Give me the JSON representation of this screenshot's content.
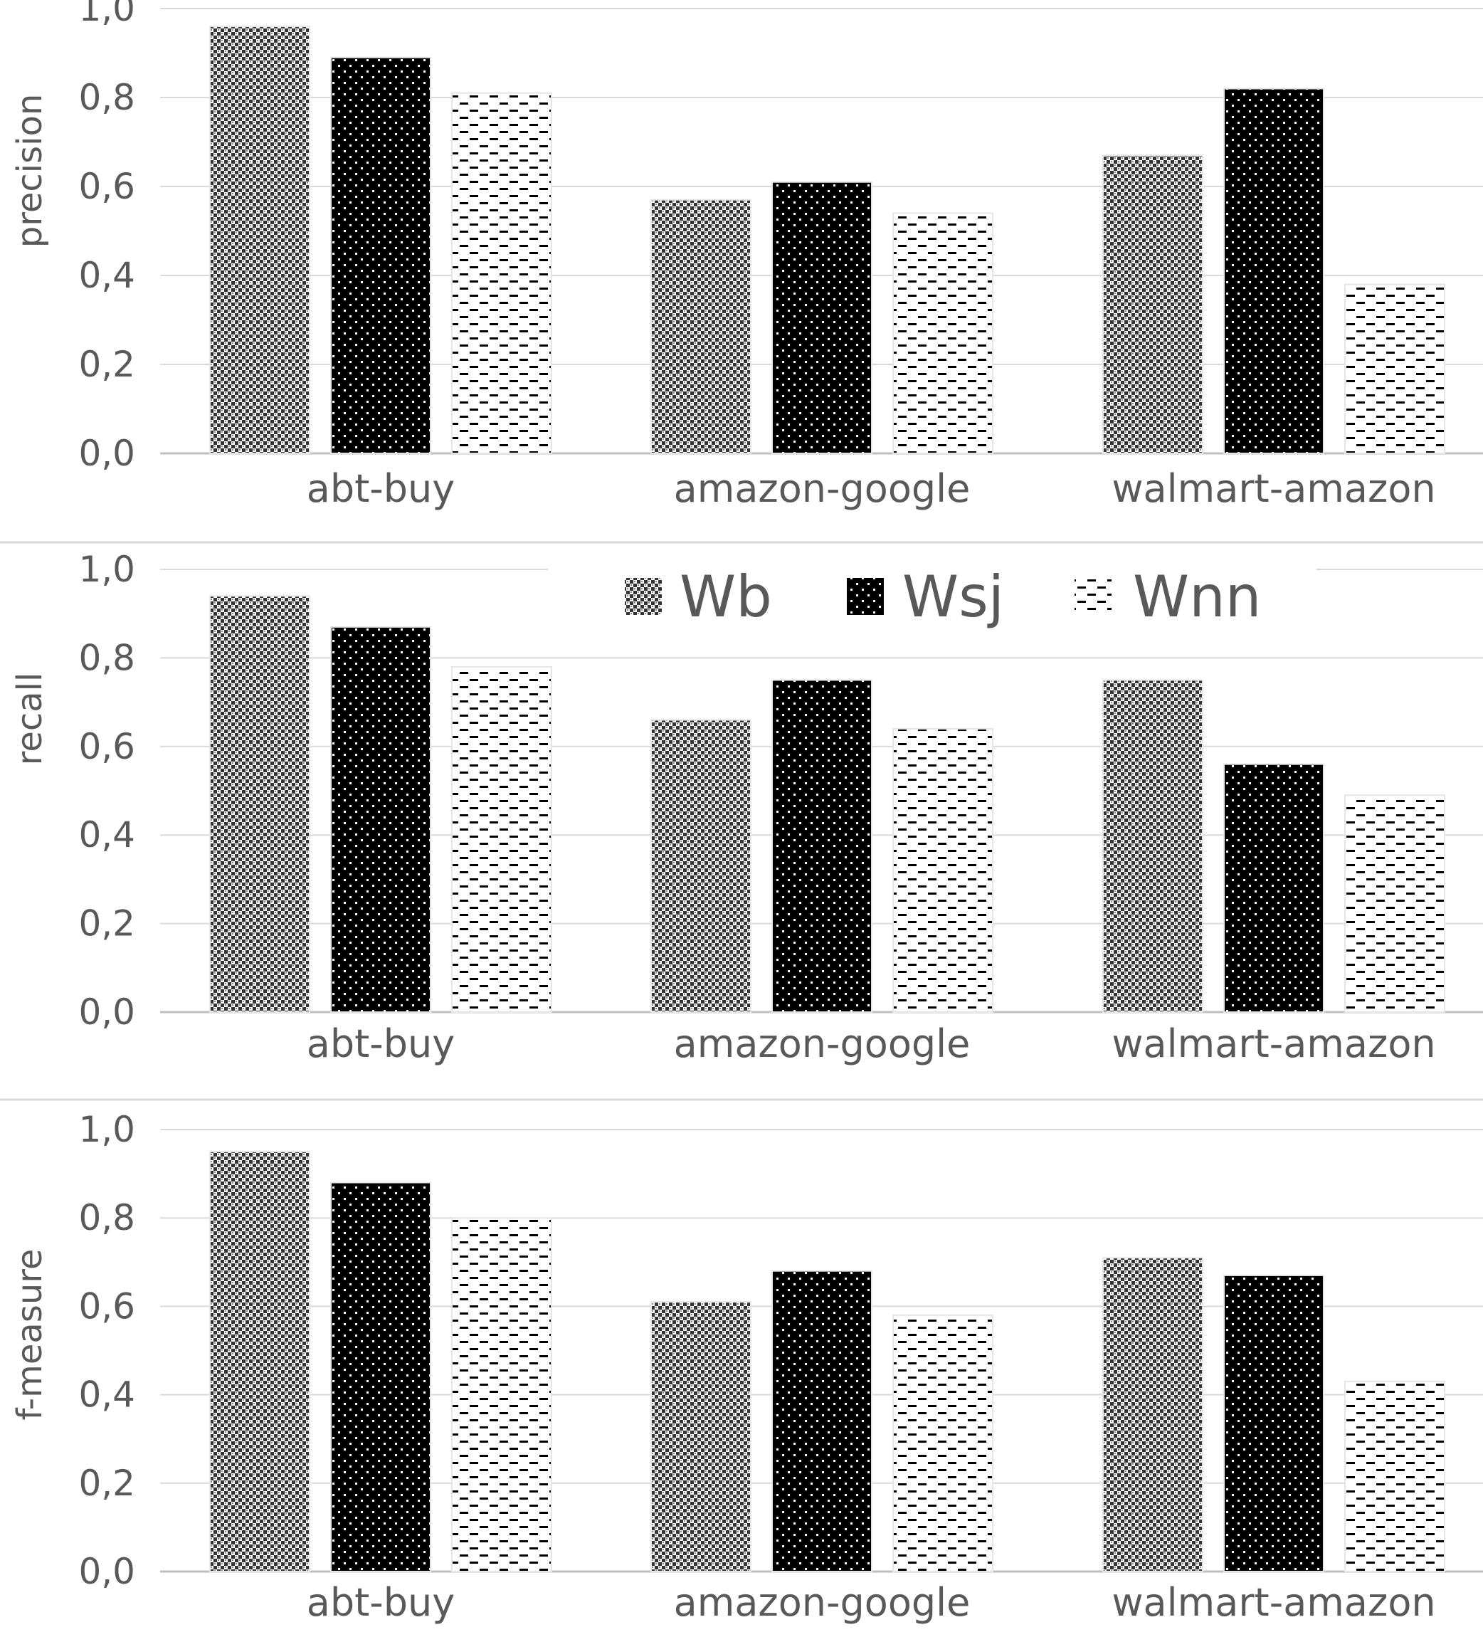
{
  "chart_data": [
    {
      "type": "bar",
      "ylabel": "precision",
      "categories": [
        "abt-buy",
        "amazon-google",
        "walmart-amazon"
      ],
      "series": [
        {
          "name": "Wb",
          "values": [
            0.96,
            0.57,
            0.67
          ]
        },
        {
          "name": "Wsj",
          "values": [
            0.89,
            0.61,
            0.82
          ]
        },
        {
          "name": "Wnn",
          "values": [
            0.81,
            0.54,
            0.38
          ]
        }
      ],
      "yticks": [
        "0,0",
        "0,2",
        "0,4",
        "0,6",
        "0,8",
        "1,0"
      ],
      "ylim": [
        0,
        1
      ],
      "grid": true
    },
    {
      "type": "bar",
      "ylabel": "recall",
      "categories": [
        "abt-buy",
        "amazon-google",
        "walmart-amazon"
      ],
      "series": [
        {
          "name": "Wb",
          "values": [
            0.94,
            0.66,
            0.75
          ]
        },
        {
          "name": "Wsj",
          "values": [
            0.87,
            0.75,
            0.56
          ]
        },
        {
          "name": "Wnn",
          "values": [
            0.78,
            0.64,
            0.49
          ]
        }
      ],
      "yticks": [
        "0,0",
        "0,2",
        "0,4",
        "0,6",
        "0,8",
        "1,0"
      ],
      "ylim": [
        0,
        1
      ],
      "grid": true
    },
    {
      "type": "bar",
      "ylabel": "f-measure",
      "categories": [
        "abt-buy",
        "amazon-google",
        "walmart-amazon"
      ],
      "series": [
        {
          "name": "Wb",
          "values": [
            0.95,
            0.61,
            0.71
          ]
        },
        {
          "name": "Wsj",
          "values": [
            0.88,
            0.68,
            0.67
          ]
        },
        {
          "name": "Wnn",
          "values": [
            0.8,
            0.58,
            0.43
          ]
        }
      ],
      "yticks": [
        "0,0",
        "0,2",
        "0,4",
        "0,6",
        "0,8",
        "1,0"
      ],
      "ylim": [
        0,
        1
      ],
      "grid": true
    }
  ],
  "legend": {
    "placement": "top-center of middle panel",
    "entries": [
      "Wb",
      "Wsj",
      "Wnn"
    ]
  }
}
